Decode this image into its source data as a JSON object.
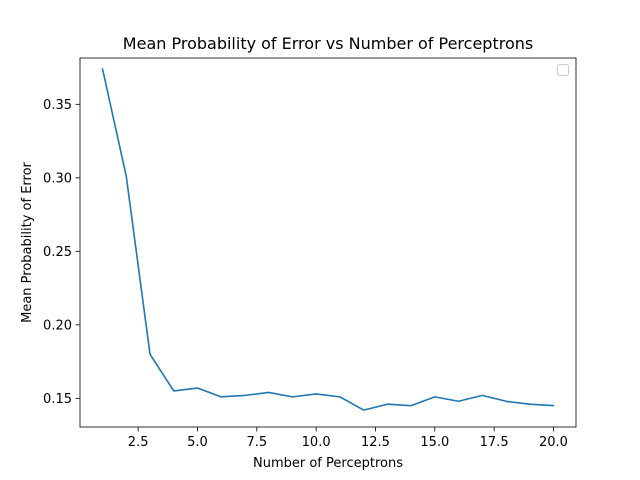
{
  "chart_data": {
    "type": "line",
    "title": "Mean Probability of Error vs Number of Perceptrons",
    "xlabel": "Number of Perceptrons",
    "ylabel": "Mean Probability of Error",
    "xlim": [
      0.05,
      20.95
    ],
    "ylim": [
      0.1305,
      0.3815
    ],
    "xticks": [
      2.5,
      5.0,
      7.5,
      10.0,
      12.5,
      15.0,
      17.5,
      20.0
    ],
    "xtick_labels": [
      "2.5",
      "5.0",
      "7.5",
      "10.0",
      "12.5",
      "15.0",
      "17.5",
      "20.0"
    ],
    "yticks": [
      0.15,
      0.2,
      0.25,
      0.3,
      0.35
    ],
    "ytick_labels": [
      "0.15",
      "0.20",
      "0.25",
      "0.30",
      "0.35"
    ],
    "grid": false,
    "legend": {
      "placement": "upper-right",
      "entries": []
    },
    "series": [
      {
        "color": "#1f77b4",
        "x": [
          1,
          2,
          3,
          4,
          5,
          6,
          7,
          8,
          9,
          10,
          11,
          12,
          13,
          14,
          15,
          16,
          17,
          18,
          19,
          20
        ],
        "y": [
          0.374,
          0.301,
          0.18,
          0.155,
          0.157,
          0.151,
          0.152,
          0.154,
          0.151,
          0.153,
          0.151,
          0.142,
          0.146,
          0.145,
          0.151,
          0.148,
          0.152,
          0.148,
          0.146,
          0.145
        ]
      }
    ]
  }
}
